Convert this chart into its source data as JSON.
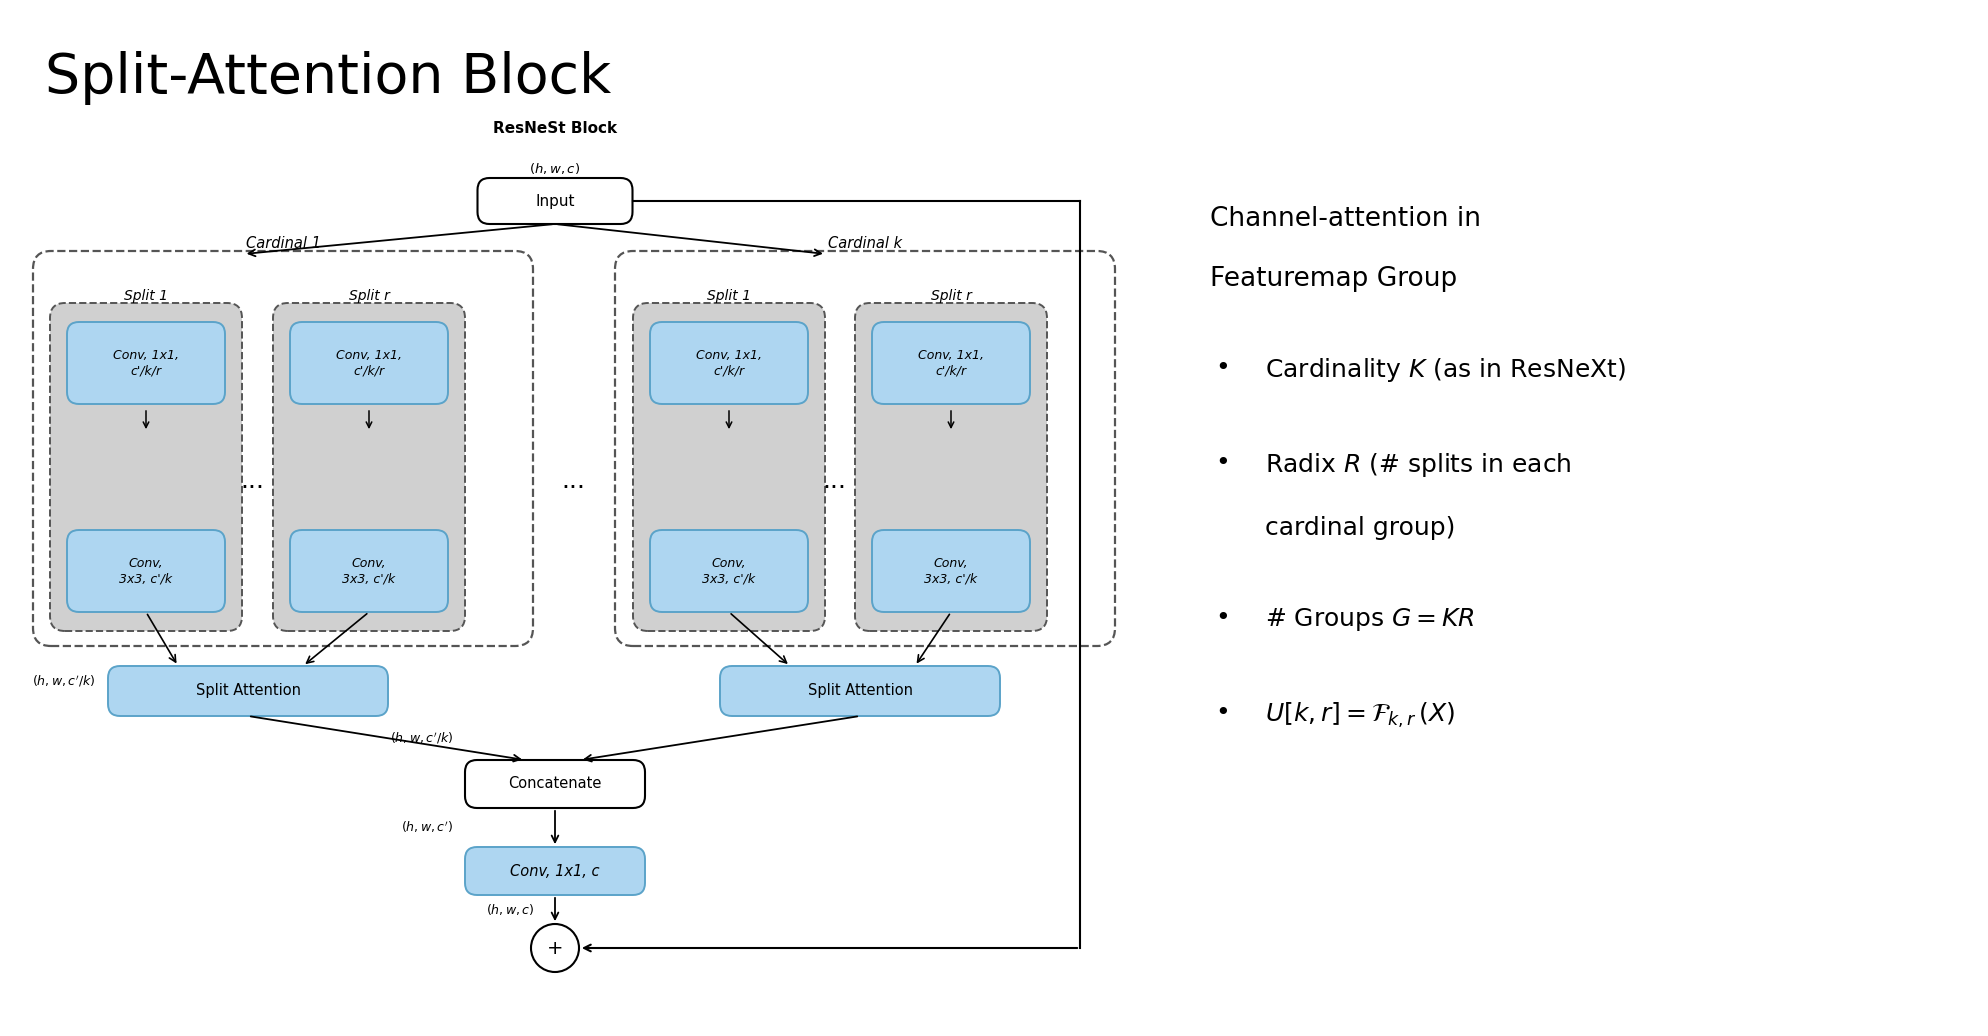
{
  "title": "Split-Attention Block",
  "bg_color": "#ffffff",
  "box_blue": "#aed6f1",
  "box_blue_border": "#5ba3c9",
  "box_white": "#ffffff",
  "box_white_border": "#000000",
  "box_gray_bg": "#d0d0d0",
  "dashed_border": "#555555",
  "text_dark": "#000000",
  "right_panel_title": "Channel-attention in\nFeaturemap Group",
  "bullet1": "Cardinality $K$ (as in ResNeXt)",
  "bullet2_line1": "Radix $R$ (# splits in each",
  "bullet2_line2": "cardinal group)",
  "bullet3": "# Groups $G = KR$",
  "bullet4": "$U[k, r] = \\mathcal{F}_{k,r}\\,(X)$"
}
